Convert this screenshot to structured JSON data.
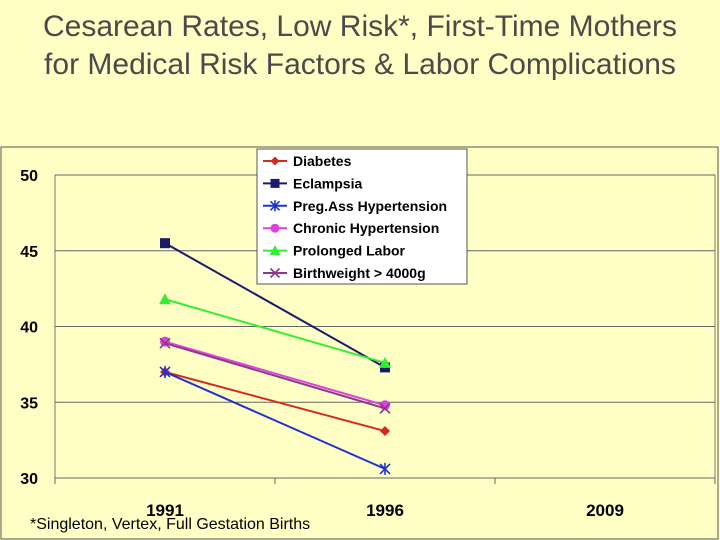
{
  "title_line1": "Cesarean Rates, Low Risk*, First-Time Mothers",
  "title_line2": "for Medical Risk Factors & Labor Complications",
  "footnote": "*Singleton, Vertex, Full Gestation Births",
  "chart_data": {
    "type": "line",
    "categories": [
      "1991",
      "1996",
      "2009"
    ],
    "ylim": [
      30,
      50
    ],
    "yticks": [
      30,
      35,
      40,
      45,
      50
    ],
    "grid": true,
    "legend_position": "top-center",
    "series": [
      {
        "name": "Diabetes",
        "values": [
          37.0,
          33.1,
          null
        ],
        "color": "#D42A1E",
        "marker": "diamond"
      },
      {
        "name": "Eclampsia",
        "values": [
          45.5,
          37.3,
          null
        ],
        "color": "#1A1A6E",
        "marker": "square"
      },
      {
        "name": "Preg.Ass Hypertension",
        "values": [
          37.0,
          30.6,
          null
        ],
        "color": "#2233CC",
        "marker": "asterisk"
      },
      {
        "name": "Chronic Hypertension",
        "values": [
          39.0,
          34.8,
          null
        ],
        "color": "#E040E0",
        "marker": "circle"
      },
      {
        "name": "Prolonged Labor",
        "values": [
          41.8,
          37.6,
          null
        ],
        "color": "#33EE33",
        "marker": "triangle"
      },
      {
        "name": "Birthweight > 4000g",
        "values": [
          38.9,
          34.6,
          null
        ],
        "color": "#8B3A8B",
        "marker": "x"
      }
    ]
  }
}
